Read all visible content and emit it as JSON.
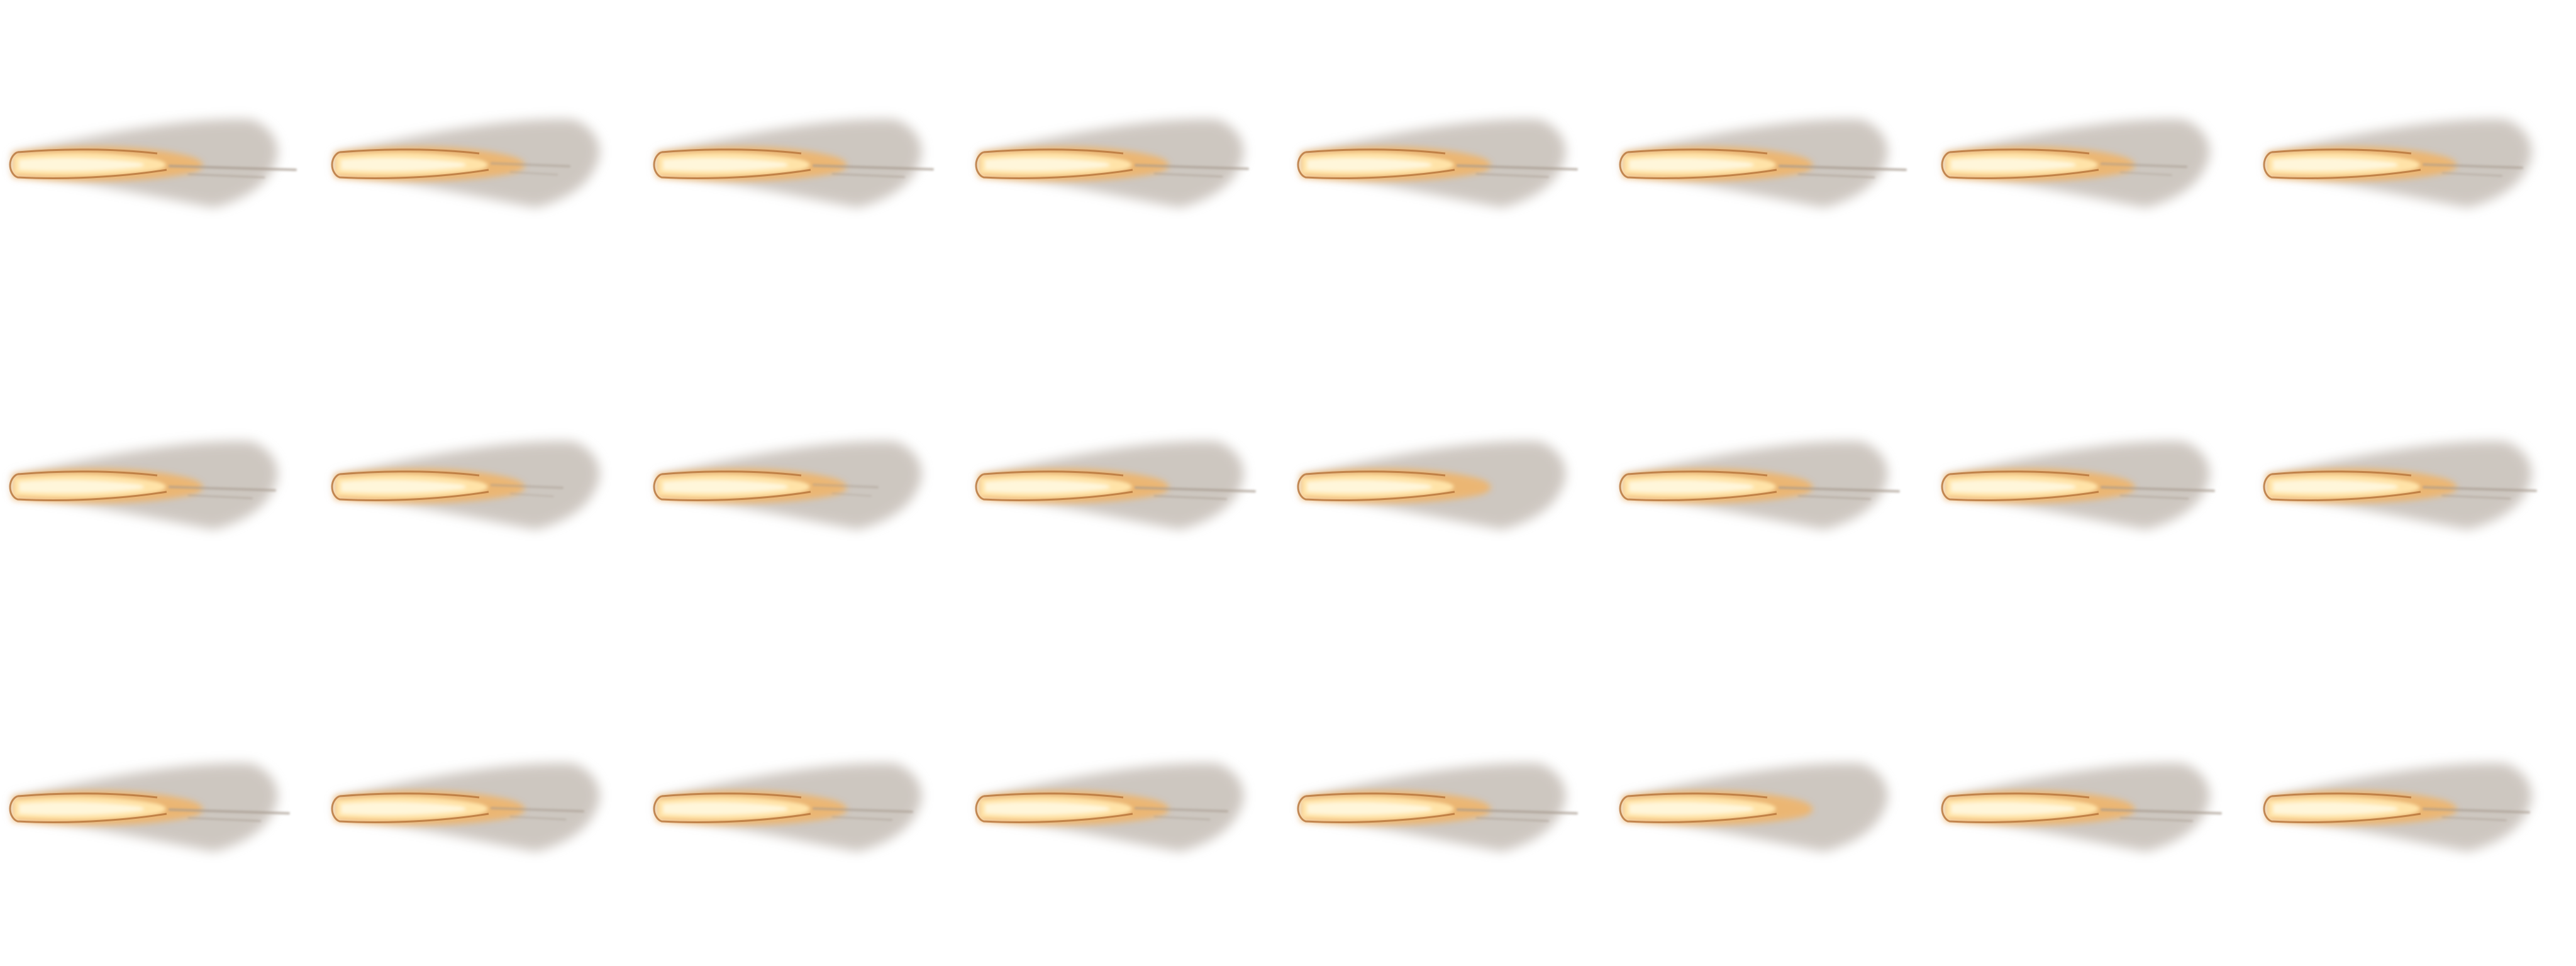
{
  "sprite_sheet": {
    "rows": 3,
    "columns": 8,
    "frame_count": 24,
    "sprite": "muzzle-flash-flame",
    "colors": {
      "background": "#ffffff",
      "core": "#fff6da",
      "inner": "#ffe3a8",
      "glow": "#f6b15a",
      "outline": "#b8773d",
      "smoke": "#a69a8e"
    },
    "frames": [
      {
        "index": 1,
        "trail": 1.0
      },
      {
        "index": 2,
        "trail": 0.3
      },
      {
        "index": 3,
        "trail": 0.9
      },
      {
        "index": 4,
        "trail": 0.8
      },
      {
        "index": 5,
        "trail": 0.9
      },
      {
        "index": 6,
        "trail": 1.0
      },
      {
        "index": 7,
        "trail": 0.4
      },
      {
        "index": 8,
        "trail": 0.6
      },
      {
        "index": 9,
        "trail": 0.7
      },
      {
        "index": 10,
        "trail": 0.2
      },
      {
        "index": 11,
        "trail": 0.1
      },
      {
        "index": 12,
        "trail": 0.9
      },
      {
        "index": 13,
        "trail": 0.0
      },
      {
        "index": 14,
        "trail": 0.9
      },
      {
        "index": 15,
        "trail": 0.8
      },
      {
        "index": 16,
        "trail": 0.8
      },
      {
        "index": 17,
        "trail": 0.9
      },
      {
        "index": 18,
        "trail": 0.5
      },
      {
        "index": 19,
        "trail": 0.6
      },
      {
        "index": 20,
        "trail": 0.5
      },
      {
        "index": 21,
        "trail": 0.9
      },
      {
        "index": 22,
        "trail": 0.0
      },
      {
        "index": 23,
        "trail": 0.9
      },
      {
        "index": 24,
        "trail": 0.7
      }
    ]
  }
}
